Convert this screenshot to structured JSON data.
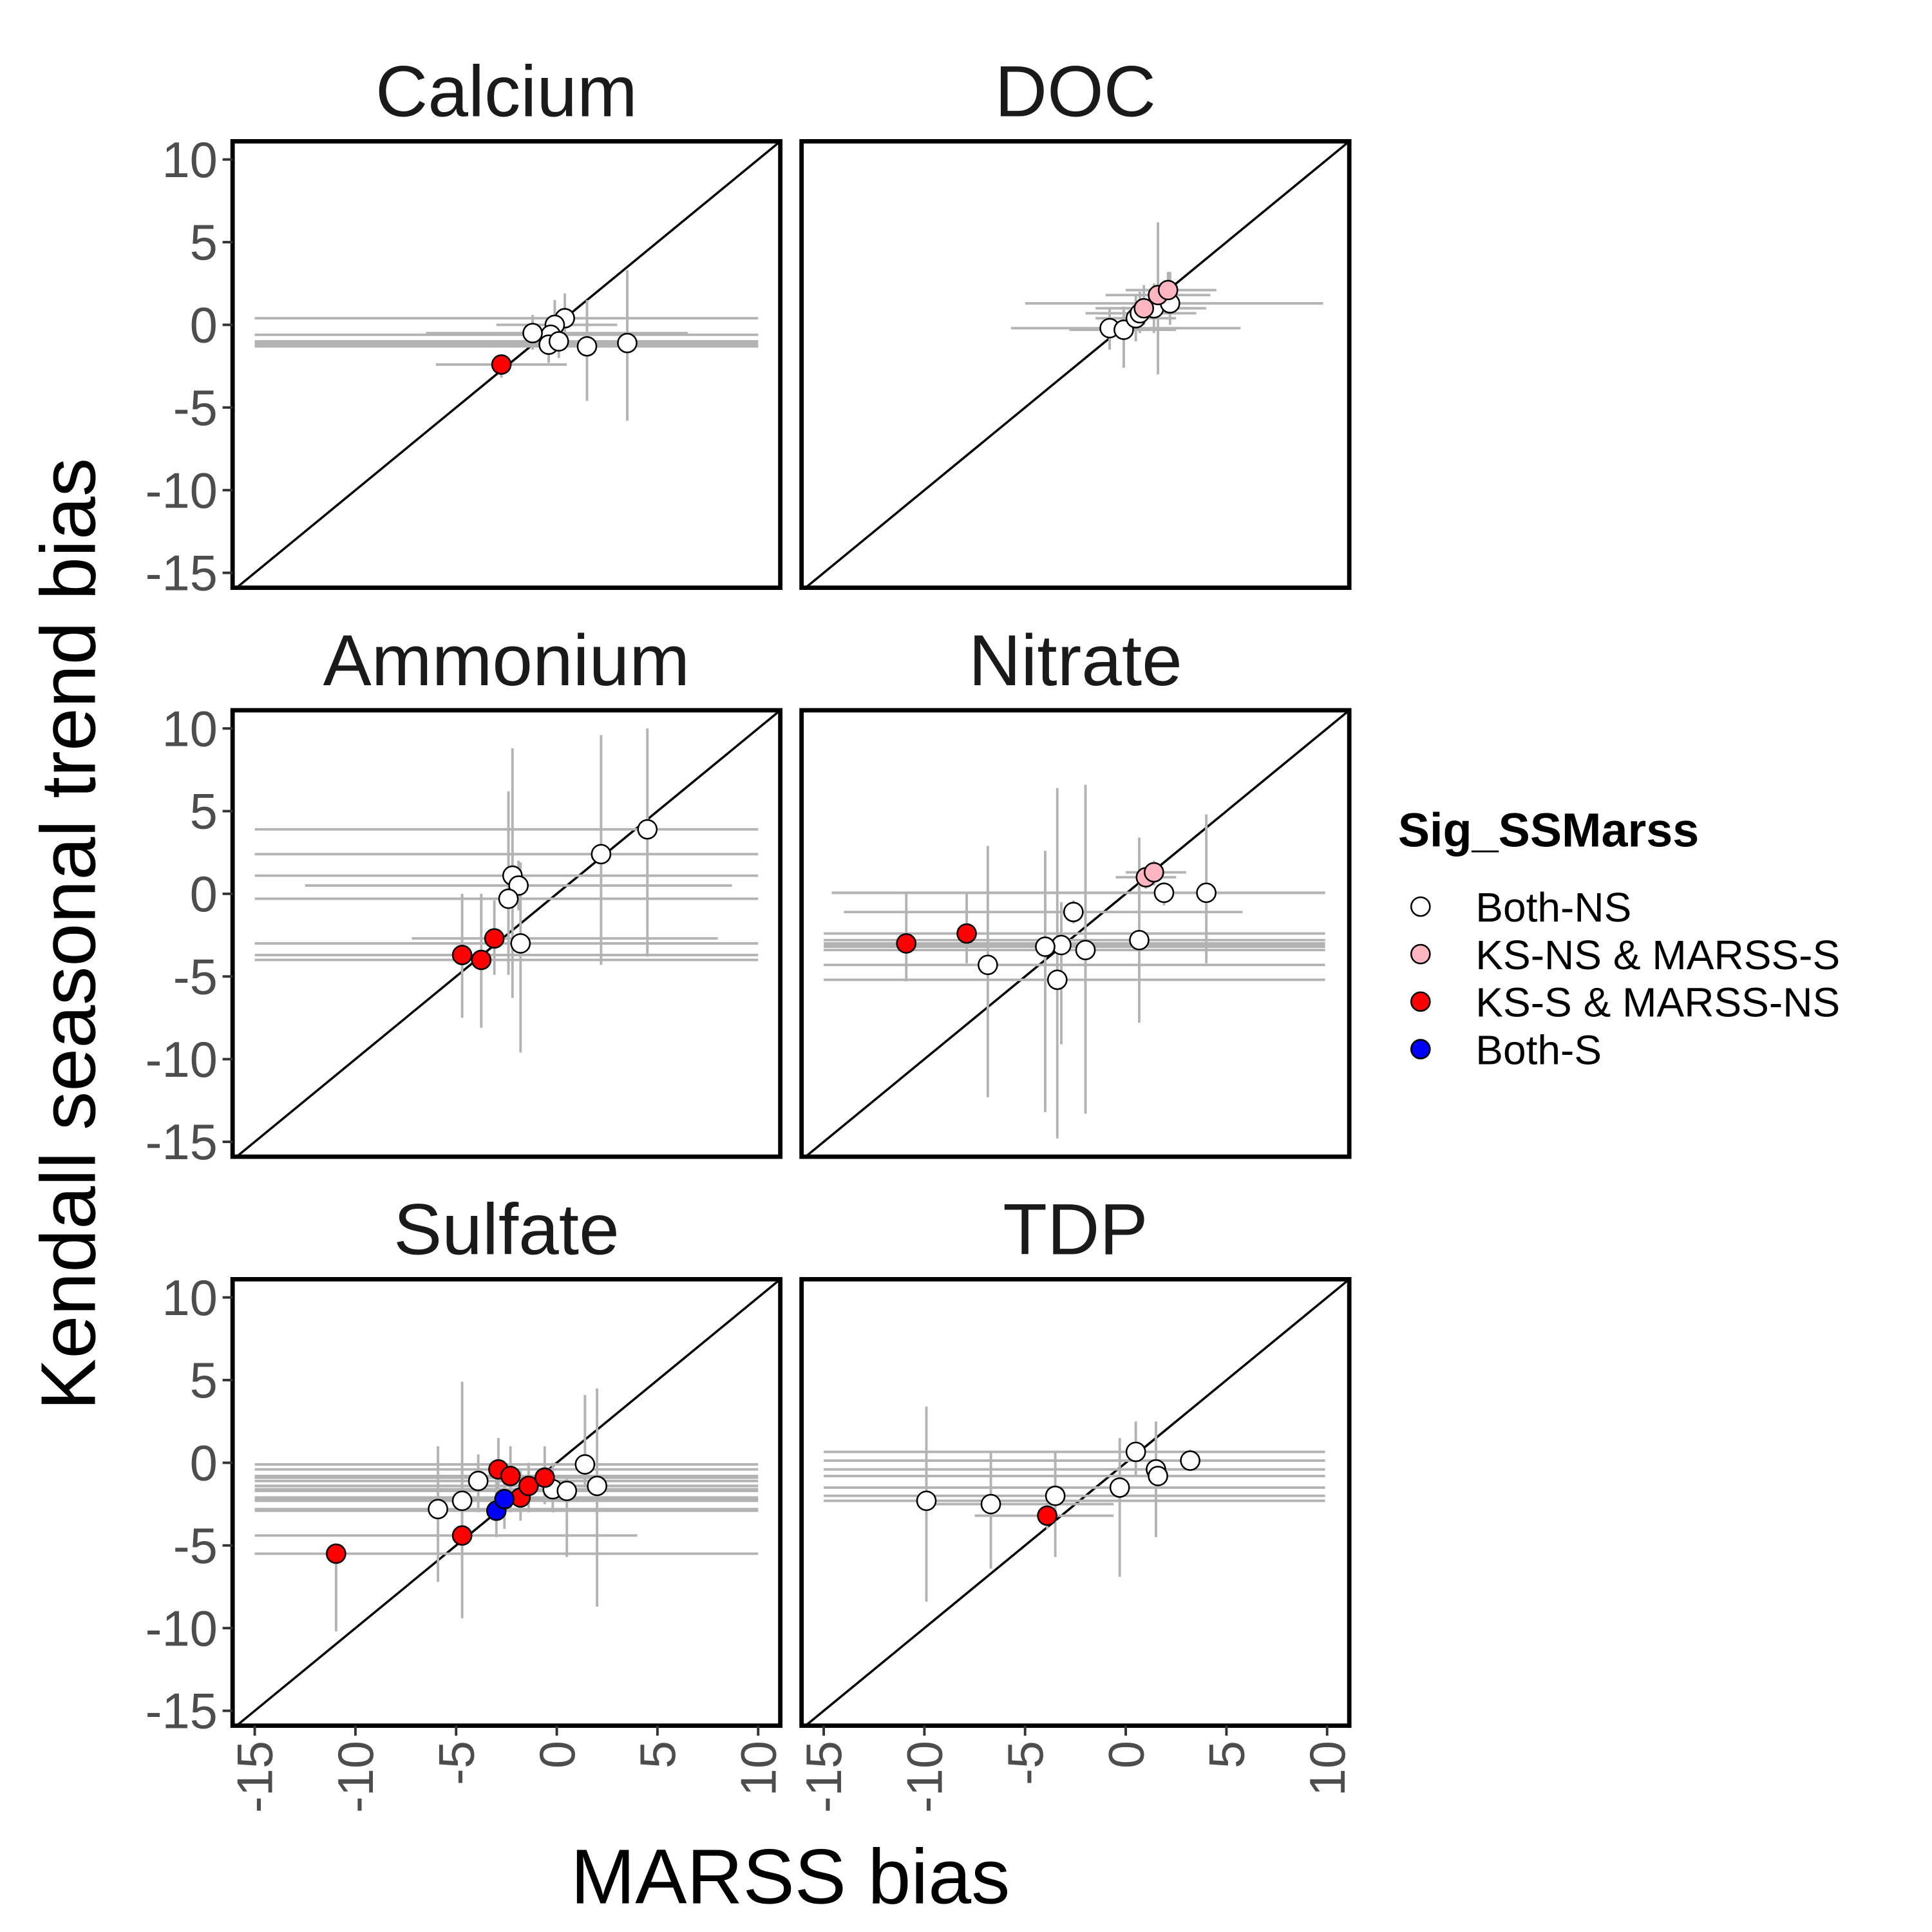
{
  "chart_data": {
    "type": "scatter",
    "x_label": "MARSS bias",
    "y_label": "Kendall seasonal trend bias",
    "xlim": [
      -16.1,
      11.1
    ],
    "ylim": [
      -15.9,
      11.1
    ],
    "xticks": [
      -15,
      -10,
      -5,
      0,
      5,
      10
    ],
    "yticks": [
      -15,
      -10,
      -5,
      0,
      5,
      10
    ],
    "diagonal": true,
    "grid": false,
    "legend": {
      "title": "Sig_SSMarss",
      "position": "right"
    },
    "series": [
      {
        "name": "Both-NS",
        "color": "#ffffff"
      },
      {
        "name": "KS-NS & MARSS-S",
        "color": "#ffb6c1"
      },
      {
        "name": "KS-S & MARSS-NS",
        "color": "#ff0000"
      },
      {
        "name": "Both-S",
        "color": "#0000ff"
      }
    ],
    "panels": [
      {
        "title": "Calcium",
        "series": [
          {
            "x": [
              0.4,
              -0.1,
              -0.3,
              -1.2,
              -0.4,
              0.1,
              1.5,
              3.5
            ],
            "y": [
              0.4,
              0,
              -0.6,
              -0.5,
              -1.2,
              -1.0,
              -1.3,
              -1.1
            ],
            "x_low": [
              -15,
              -3,
              -15,
              -6.5,
              -15,
              -15,
              -15,
              -15
            ],
            "x_high": [
              10,
              3,
              10,
              6.5,
              10,
              10,
              10,
              10
            ],
            "y_low": [
              -1.5,
              -1,
              -1.5,
              -1.5,
              -2.3,
              -2,
              -4.6,
              -5.8
            ],
            "y_high": [
              1.9,
              1.5,
              0.5,
              0.6,
              -0.2,
              0.3,
              1.5,
              3.3
            ]
          },
          {},
          {
            "x": [
              -2.75
            ],
            "y": [
              -2.4
            ],
            "x_low": [
              -6
            ],
            "x_high": [
              0.5
            ],
            "y_low": [
              -3.2
            ],
            "y_high": [
              -1.8
            ]
          },
          {}
        ]
      },
      {
        "title": "DOC",
        "series": [
          {
            "x": [
              -0.8,
              -0.1,
              0.5,
              0.7,
              1.4,
              2.2
            ],
            "y": [
              -0.2,
              -0.3,
              0.4,
              0.7,
              1.0,
              1.3
            ],
            "x_low": [
              -5.7,
              -2.8,
              -1.5,
              -2,
              -1,
              -5
            ],
            "x_high": [
              5.7,
              2.5,
              2.5,
              3.5,
              4,
              9.8
            ],
            "y_low": [
              -1.5,
              -2.6,
              -1,
              -0.5,
              -0.5,
              0
            ],
            "y_high": [
              1,
              1.1,
              1.8,
              2,
              2.5,
              3.2
            ]
          },
          {
            "x": [
              0.9,
              1.6,
              2.1
            ],
            "y": [
              1.0,
              1.8,
              2.1
            ],
            "x_low": [
              -1.5,
              -1,
              0
            ],
            "x_high": [
              3.3,
              4.2,
              4.5
            ],
            "y_low": [
              0,
              -3,
              1
            ],
            "y_high": [
              2.4,
              6.2,
              3.2
            ]
          },
          {},
          {}
        ]
      },
      {
        "title": "Ammonium",
        "series": [
          {
            "x": [
              4.5,
              2.2,
              -2.2,
              -1.9,
              -2.4,
              -1.8
            ],
            "y": [
              3.9,
              2.4,
              1.1,
              0.5,
              -0.3,
              -3.0
            ],
            "x_low": [
              -15,
              -15,
              -15,
              -12.5,
              -15,
              -15
            ],
            "x_high": [
              10,
              10,
              10,
              8.7,
              10,
              10
            ],
            "y_low": [
              -3.8,
              -4.3,
              -6.3,
              -1,
              -4.9,
              -9.6
            ],
            "y_high": [
              10,
              9.6,
              8.8,
              2,
              6.2,
              1.9
            ]
          },
          {},
          {
            "x": [
              -3.1,
              -4.7,
              -3.75
            ],
            "y": [
              -2.7,
              -3.7,
              -4.0
            ],
            "x_low": [
              -7.2,
              -15,
              -15
            ],
            "x_high": [
              8,
              10,
              10
            ],
            "y_low": [
              -4.9,
              -7.5,
              -8.1
            ],
            "y_high": [
              -0.4,
              0,
              0
            ]
          },
          {}
        ]
      },
      {
        "title": "Nitrate",
        "series": [
          {
            "x": [
              4,
              1.9,
              -2.6,
              -3.2,
              -4,
              -2,
              -6.85,
              -3.4,
              0.67
            ],
            "y": [
              0.06,
              0.06,
              -1.1,
              -3.1,
              -3.2,
              -3.4,
              -4.3,
              -5.2,
              -2.8
            ],
            "x_low": [
              -14.6,
              -14.6,
              -14,
              -15,
              -15,
              -15,
              -15,
              -15,
              -15
            ],
            "x_high": [
              9.9,
              9.9,
              5.8,
              9.9,
              9.9,
              9.9,
              9.9,
              9.9,
              9.9
            ],
            "y_low": [
              -4.2,
              -0.7,
              -1.8,
              -9.1,
              -13.2,
              -13.3,
              -12.3,
              -14.8,
              -7.8
            ],
            "y_high": [
              4.8,
              0.7,
              -0.4,
              -0.5,
              2.6,
              6.6,
              2.9,
              6.4,
              3.4
            ]
          },
          {
            "x": [
              1.0,
              1.4
            ],
            "y": [
              1.0,
              1.3
            ],
            "x_low": [
              -0.5,
              0
            ],
            "x_high": [
              2.5,
              3
            ],
            "y_low": [
              0.3,
              0.5
            ],
            "y_high": [
              1.6,
              2
            ]
          },
          {
            "x": [
              -10.9,
              -7.9
            ],
            "y": [
              -3.0,
              -2.4
            ],
            "x_low": [
              -15,
              -15
            ],
            "x_high": [
              9.9,
              9.9
            ],
            "y_low": [
              -5.3,
              -4.2
            ],
            "y_high": [
              0,
              0
            ]
          },
          {}
        ]
      },
      {
        "title": "Sulfate",
        "series": [
          {
            "x": [
              -5.9,
              -4.7,
              -3.9,
              -0.2,
              0.5,
              1.4,
              2.0
            ],
            "y": [
              -2.8,
              -2.3,
              -1.1,
              -1.6,
              -1.7,
              -0.1,
              -1.4
            ],
            "x_low": [
              -15,
              -15,
              -15,
              -15,
              -15,
              -15,
              -15
            ],
            "x_high": [
              10,
              10,
              10,
              10,
              10,
              10,
              10
            ],
            "y_low": [
              -7.2,
              -9.4,
              -3,
              -3,
              -5.7,
              -1.5,
              -8.7
            ],
            "y_high": [
              1.0,
              4.9,
              0.5,
              0,
              -0.8,
              4.1,
              4.5
            ]
          },
          {},
          {
            "x": [
              -10.96,
              -4.7,
              -2.9,
              -2.3,
              -1.8,
              -1.4,
              -0.6
            ],
            "y": [
              -5.5,
              -4.4,
              -0.4,
              -0.8,
              -2.1,
              -1.4,
              -0.9
            ],
            "x_low": [
              -15,
              -15,
              -15,
              -15,
              -15,
              -15,
              -15
            ],
            "x_high": [
              10,
              4,
              10,
              10,
              10,
              10,
              10
            ],
            "y_low": [
              -10.2,
              -6.0,
              -2,
              -3,
              -3.5,
              -3,
              -2.5
            ],
            "y_high": [
              -5.5,
              -3,
              1.5,
              1,
              -0.5,
              0,
              1
            ]
          },
          {
            "x": [
              -3.0,
              -2.6
            ],
            "y": [
              -2.9,
              -2.2
            ],
            "x_low": [
              -15,
              -15
            ],
            "x_high": [
              10,
              10
            ],
            "y_low": [
              -4.5,
              -4
            ],
            "y_high": [
              -1,
              -0.5
            ]
          }
        ]
      },
      {
        "title": "TDP",
        "series": [
          {
            "x": [
              0.5,
              3.2,
              1.5,
              1.6,
              -0.3,
              -3.5,
              -9.9,
              -6.7
            ],
            "y": [
              0.66,
              0.13,
              -0.4,
              -0.8,
              -1.5,
              -2.0,
              -2.3,
              -2.5
            ],
            "x_low": [
              -15,
              -15,
              -15,
              -15,
              -15,
              -15,
              -15,
              -10.3
            ],
            "x_high": [
              9.9,
              9.9,
              9.9,
              9.9,
              9.9,
              9.9,
              9.9,
              -0.6
            ],
            "y_low": [
              -0.8,
              -0.5,
              -4.5,
              -1.5,
              -6.9,
              -5.7,
              -8.4,
              -6.4
            ],
            "y_high": [
              2.5,
              0.8,
              2.5,
              0,
              1.5,
              0.7,
              3.4,
              0.7
            ]
          },
          {},
          {
            "x": [
              -3.9
            ],
            "y": [
              -3.2
            ],
            "x_low": [
              -7.5
            ],
            "x_high": [
              -0.6
            ],
            "y_low": [
              -4
            ],
            "y_high": [
              -2.4
            ]
          },
          {}
        ]
      }
    ]
  }
}
